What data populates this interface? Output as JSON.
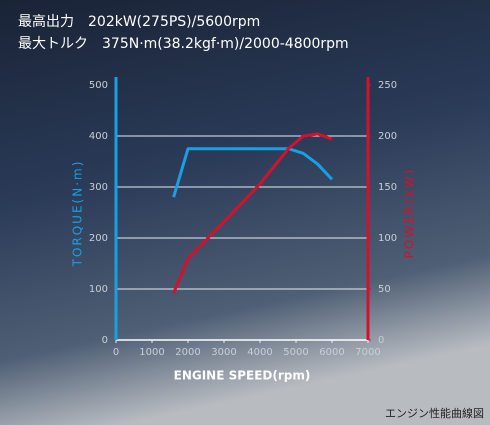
{
  "chart_data": {
    "type": "line",
    "annotations": [
      "最高出力　202kW(275PS)/5600rpm",
      "最大トルク　375N·m(38.2kgf·m)/2000-4800rpm"
    ],
    "caption": "エンジン性能曲線図",
    "x_label": "ENGINE SPEED(rpm)",
    "y_label": "TORQUE(N·m)",
    "y2_label": "POWER(kW)",
    "x": [
      1600,
      2000,
      3000,
      4000,
      4800,
      5200,
      5600,
      6000
    ],
    "series": [
      {
        "name": "TORQUE",
        "color": "#1b9fe3",
        "values": [
          280,
          375,
          375,
          375,
          375,
          366,
          345,
          315
        ]
      },
      {
        "name": "POWER",
        "color": "#d3112d",
        "axis": "y2",
        "values": [
          46,
          80,
          116,
          153,
          188,
          200,
          202,
          197
        ]
      }
    ],
    "xlim": [
      0,
      7000
    ],
    "xticks": [
      0,
      1000,
      2000,
      3000,
      4000,
      5000,
      6000,
      7000
    ],
    "ylim": [
      0,
      500
    ],
    "yticks": [
      0,
      100,
      200,
      300,
      400,
      500
    ],
    "y2lim": [
      0,
      250
    ],
    "y2ticks": [
      0,
      50,
      100,
      150,
      200,
      250
    ],
    "grid": true
  }
}
